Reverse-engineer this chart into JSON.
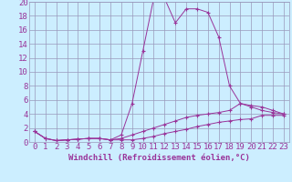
{
  "x": [
    0,
    1,
    2,
    3,
    4,
    5,
    6,
    7,
    8,
    9,
    10,
    11,
    12,
    13,
    14,
    15,
    16,
    17,
    18,
    19,
    20,
    21,
    22,
    23
  ],
  "line1": [
    1.5,
    0.5,
    0.2,
    0.3,
    0.4,
    0.5,
    0.5,
    0.3,
    1.0,
    5.5,
    13.0,
    20.5,
    20.5,
    17.0,
    19.0,
    19.0,
    18.5,
    15.0,
    8.0,
    5.5,
    5.0,
    4.5,
    4.2,
    4.0
  ],
  "line2": [
    1.5,
    0.5,
    0.2,
    0.3,
    0.4,
    0.5,
    0.5,
    0.3,
    0.5,
    1.0,
    1.5,
    2.0,
    2.5,
    3.0,
    3.5,
    3.8,
    4.0,
    4.2,
    4.5,
    5.5,
    5.2,
    5.0,
    4.5,
    4.0
  ],
  "line3": [
    1.5,
    0.5,
    0.2,
    0.3,
    0.4,
    0.5,
    0.5,
    0.3,
    0.3,
    0.3,
    0.5,
    0.8,
    1.2,
    1.5,
    1.8,
    2.2,
    2.5,
    2.8,
    3.0,
    3.2,
    3.3,
    3.8,
    3.8,
    3.8
  ],
  "xlabel": "Windchill (Refroidissement éolien,°C)",
  "xlim": [
    0,
    23
  ],
  "ylim": [
    0,
    20
  ],
  "yticks": [
    0,
    2,
    4,
    6,
    8,
    10,
    12,
    14,
    16,
    18,
    20
  ],
  "xticks": [
    0,
    1,
    2,
    3,
    4,
    5,
    6,
    7,
    8,
    9,
    10,
    11,
    12,
    13,
    14,
    15,
    16,
    17,
    18,
    19,
    20,
    21,
    22,
    23
  ],
  "line_color": "#993399",
  "bg_color": "#cceeff",
  "grid_color": "#9999bb",
  "font_color": "#993399",
  "tick_fontsize": 6.5,
  "xlabel_fontsize": 6.5
}
